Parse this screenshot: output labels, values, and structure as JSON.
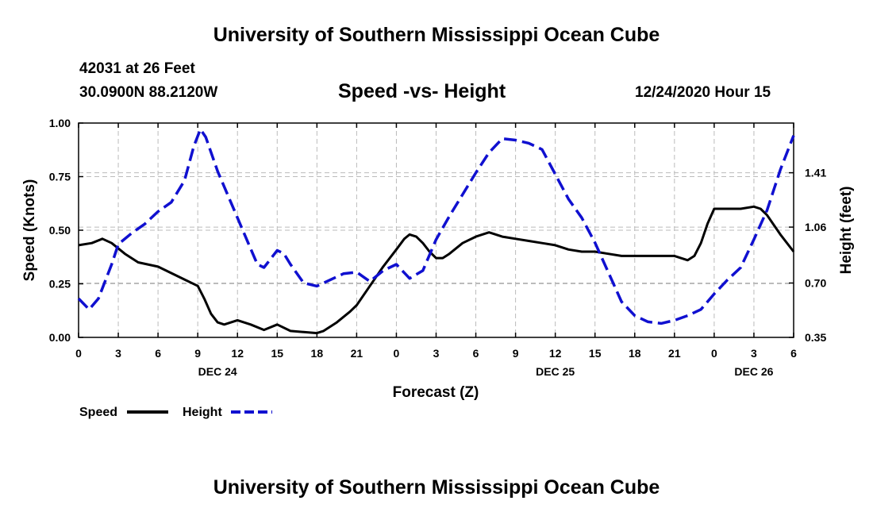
{
  "header": {
    "title": "University of Southern Mississippi Ocean Cube",
    "station": "42031 at 26 Feet",
    "coords": "30.0900N 88.2120W",
    "timestamp": "12/24/2020 Hour 15"
  },
  "footer": {
    "title": "University of Southern Mississippi Ocean Cube"
  },
  "colors": {
    "speed": "#000000",
    "height": "#1010d0",
    "grid": "#bbbbbb"
  },
  "chart_data": {
    "type": "line",
    "title": "Speed -vs- Height",
    "xlabel": "Forecast (Z)",
    "ylabel": "Speed (Knots)",
    "y2label": "Height (feet)",
    "x_unit": "hours since DEC 24 00Z",
    "xlim": [
      0,
      54
    ],
    "ylim": [
      0,
      1.0
    ],
    "y2lim": [
      0.35,
      1.73
    ],
    "x_ticks": [
      {
        "x": 0,
        "label": "0"
      },
      {
        "x": 3,
        "label": "3"
      },
      {
        "x": 6,
        "label": "6"
      },
      {
        "x": 9,
        "label": "9"
      },
      {
        "x": 12,
        "label": "12"
      },
      {
        "x": 15,
        "label": "15"
      },
      {
        "x": 18,
        "label": "18"
      },
      {
        "x": 21,
        "label": "21"
      },
      {
        "x": 24,
        "label": "0"
      },
      {
        "x": 27,
        "label": "3"
      },
      {
        "x": 30,
        "label": "6"
      },
      {
        "x": 33,
        "label": "9"
      },
      {
        "x": 36,
        "label": "12"
      },
      {
        "x": 39,
        "label": "15"
      },
      {
        "x": 42,
        "label": "18"
      },
      {
        "x": 45,
        "label": "21"
      },
      {
        "x": 48,
        "label": "0"
      },
      {
        "x": 51,
        "label": "3"
      },
      {
        "x": 54,
        "label": "6"
      }
    ],
    "day_labels": [
      {
        "x": 10.5,
        "label": "DEC 24"
      },
      {
        "x": 36,
        "label": "DEC 25"
      },
      {
        "x": 51,
        "label": "DEC 26"
      }
    ],
    "y_ticks": [
      {
        "v": 0,
        "label": "0.00"
      },
      {
        "v": 0.25,
        "label": "0.25"
      },
      {
        "v": 0.5,
        "label": "0.50"
      },
      {
        "v": 0.75,
        "label": "0.75"
      },
      {
        "v": 1.0,
        "label": "1.00"
      }
    ],
    "y2_ticks": [
      {
        "v": 0.35,
        "label": "0.35"
      },
      {
        "v": 0.7,
        "label": "0.70"
      },
      {
        "v": 1.06,
        "label": "1.06"
      },
      {
        "v": 1.41,
        "label": "1.41"
      }
    ],
    "series": [
      {
        "name": "Speed",
        "axis": "left",
        "style": "solid",
        "points": [
          [
            0,
            0.43
          ],
          [
            1,
            0.44
          ],
          [
            1.8,
            0.46
          ],
          [
            2.5,
            0.44
          ],
          [
            3.5,
            0.39
          ],
          [
            4.5,
            0.35
          ],
          [
            6,
            0.33
          ],
          [
            7,
            0.3
          ],
          [
            8,
            0.27
          ],
          [
            9,
            0.24
          ],
          [
            9.5,
            0.18
          ],
          [
            10,
            0.11
          ],
          [
            10.5,
            0.07
          ],
          [
            11,
            0.06
          ],
          [
            12,
            0.08
          ],
          [
            13,
            0.06
          ],
          [
            14,
            0.035
          ],
          [
            15,
            0.06
          ],
          [
            16,
            0.03
          ],
          [
            17,
            0.025
          ],
          [
            18,
            0.02
          ],
          [
            18.5,
            0.03
          ],
          [
            19.5,
            0.07
          ],
          [
            20.5,
            0.12
          ],
          [
            21,
            0.15
          ],
          [
            22,
            0.24
          ],
          [
            23,
            0.33
          ],
          [
            24,
            0.41
          ],
          [
            24.6,
            0.46
          ],
          [
            25,
            0.48
          ],
          [
            25.5,
            0.47
          ],
          [
            26,
            0.44
          ],
          [
            26.5,
            0.4
          ],
          [
            27,
            0.37
          ],
          [
            27.5,
            0.37
          ],
          [
            28,
            0.39
          ],
          [
            29,
            0.44
          ],
          [
            30,
            0.47
          ],
          [
            31,
            0.49
          ],
          [
            32,
            0.47
          ],
          [
            33,
            0.46
          ],
          [
            34,
            0.45
          ],
          [
            35,
            0.44
          ],
          [
            36,
            0.43
          ],
          [
            37,
            0.41
          ],
          [
            38,
            0.4
          ],
          [
            39,
            0.4
          ],
          [
            40,
            0.39
          ],
          [
            41,
            0.38
          ],
          [
            42,
            0.38
          ],
          [
            43,
            0.38
          ],
          [
            44,
            0.38
          ],
          [
            45,
            0.38
          ],
          [
            46,
            0.36
          ],
          [
            46.5,
            0.38
          ],
          [
            47,
            0.44
          ],
          [
            47.5,
            0.53
          ],
          [
            48,
            0.6
          ],
          [
            49,
            0.6
          ],
          [
            50,
            0.6
          ],
          [
            51,
            0.61
          ],
          [
            51.5,
            0.6
          ],
          [
            52,
            0.57
          ],
          [
            53,
            0.48
          ],
          [
            54,
            0.4
          ]
        ]
      },
      {
        "name": "Height",
        "axis": "right",
        "style": "dashed",
        "points": [
          [
            0,
            0.6
          ],
          [
            0.8,
            0.53
          ],
          [
            1.5,
            0.6
          ],
          [
            2.5,
            0.82
          ],
          [
            3,
            0.95
          ],
          [
            4,
            1.02
          ],
          [
            5,
            1.08
          ],
          [
            6,
            1.16
          ],
          [
            7,
            1.22
          ],
          [
            8,
            1.36
          ],
          [
            8.7,
            1.58
          ],
          [
            9.2,
            1.69
          ],
          [
            9.6,
            1.64
          ],
          [
            10.5,
            1.42
          ],
          [
            12,
            1.12
          ],
          [
            13,
            0.92
          ],
          [
            13.5,
            0.82
          ],
          [
            14,
            0.8
          ],
          [
            15,
            0.91
          ],
          [
            15.5,
            0.89
          ],
          [
            16,
            0.82
          ],
          [
            17,
            0.7
          ],
          [
            18,
            0.68
          ],
          [
            19,
            0.72
          ],
          [
            20,
            0.76
          ],
          [
            21,
            0.77
          ],
          [
            21.5,
            0.74
          ],
          [
            22,
            0.71
          ],
          [
            23,
            0.78
          ],
          [
            24,
            0.82
          ],
          [
            25,
            0.73
          ],
          [
            26,
            0.78
          ],
          [
            27,
            0.98
          ],
          [
            28,
            1.13
          ],
          [
            29,
            1.27
          ],
          [
            30,
            1.41
          ],
          [
            31,
            1.54
          ],
          [
            32,
            1.63
          ],
          [
            33,
            1.62
          ],
          [
            34,
            1.6
          ],
          [
            35,
            1.56
          ],
          [
            36,
            1.4
          ],
          [
            37,
            1.24
          ],
          [
            38,
            1.12
          ],
          [
            39,
            0.96
          ],
          [
            40,
            0.77
          ],
          [
            41,
            0.58
          ],
          [
            42,
            0.49
          ],
          [
            43,
            0.45
          ],
          [
            44,
            0.44
          ],
          [
            45,
            0.46
          ],
          [
            46,
            0.49
          ],
          [
            47,
            0.53
          ],
          [
            48,
            0.63
          ],
          [
            49,
            0.72
          ],
          [
            50,
            0.8
          ],
          [
            51,
            0.98
          ],
          [
            52,
            1.17
          ],
          [
            53,
            1.43
          ],
          [
            54,
            1.65
          ]
        ]
      }
    ],
    "legend": [
      {
        "label": "Speed",
        "style": "solid",
        "color": "#000000"
      },
      {
        "label": "Height",
        "style": "dashed",
        "color": "#1010d0"
      }
    ]
  }
}
